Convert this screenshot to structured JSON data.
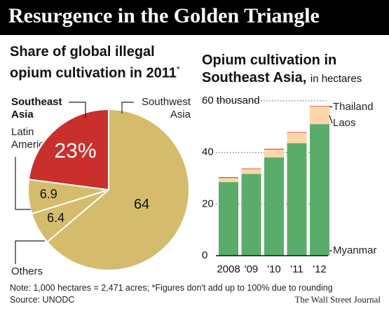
{
  "header": {
    "title": "Resurgence in the Golden Triangle"
  },
  "colors": {
    "banner": "#000000",
    "southeast_asia": "#c9302c",
    "other_regions": "#d4bc6c",
    "myanmar": "#5bac6b",
    "laos": "#fcd6a8",
    "thailand": "#d83a30"
  },
  "pie_label_text": {
    "southeast_line1": "Southeast",
    "southeast_line2": "Asia",
    "southwest_line1": "Southwest",
    "southwest_line2": "Asia",
    "latin_line1": "Latin",
    "latin_line2": "America",
    "others": "Others"
  },
  "bar_series_labels": {
    "thailand": "Thailand",
    "laos": "Laos",
    "myanmar": "Myanmar"
  },
  "chart_data": [
    {
      "type": "pie",
      "title": "Share of global illegal opium cultivation in 2011",
      "title_mark": "*",
      "slices": [
        {
          "name": "Southwest Asia",
          "value": 64,
          "label": "64"
        },
        {
          "name": "Others",
          "value": 6.4,
          "label": "6.4"
        },
        {
          "name": "Latin America",
          "value": 6.9,
          "label": "6.9"
        },
        {
          "name": "Southeast Asia",
          "value": 23,
          "label": "23%"
        }
      ]
    },
    {
      "type": "bar",
      "stacked": true,
      "title": "Opium cultivation in Southeast Asia,",
      "title_unit": "in hectares",
      "categories": [
        "2008",
        "'09",
        "'10",
        "'11",
        "'12"
      ],
      "series": [
        {
          "name": "Myanmar",
          "values": [
            28.5,
            31.7,
            38.1,
            43.6,
            51
          ]
        },
        {
          "name": "Laos",
          "values": [
            1.6,
            1.9,
            3,
            4.1,
            6.8
          ]
        },
        {
          "name": "Thailand",
          "values": [
            0.3,
            0.2,
            0.3,
            0.2,
            0.2
          ]
        }
      ],
      "y_ticks": [
        {
          "value": 0,
          "label": "0"
        },
        {
          "value": 20,
          "label": "20"
        },
        {
          "value": 40,
          "label": "40"
        },
        {
          "value": 60,
          "label": "60 thousand"
        }
      ],
      "ylim": [
        0,
        60
      ],
      "grid": "dotted"
    }
  ],
  "footer": {
    "note": "Note: 1,000 hectares = 2,471 acres; *Figures don't add up to 100% due to rounding",
    "source": "Source: UNODC",
    "credit": "The Wall Street Journal"
  }
}
